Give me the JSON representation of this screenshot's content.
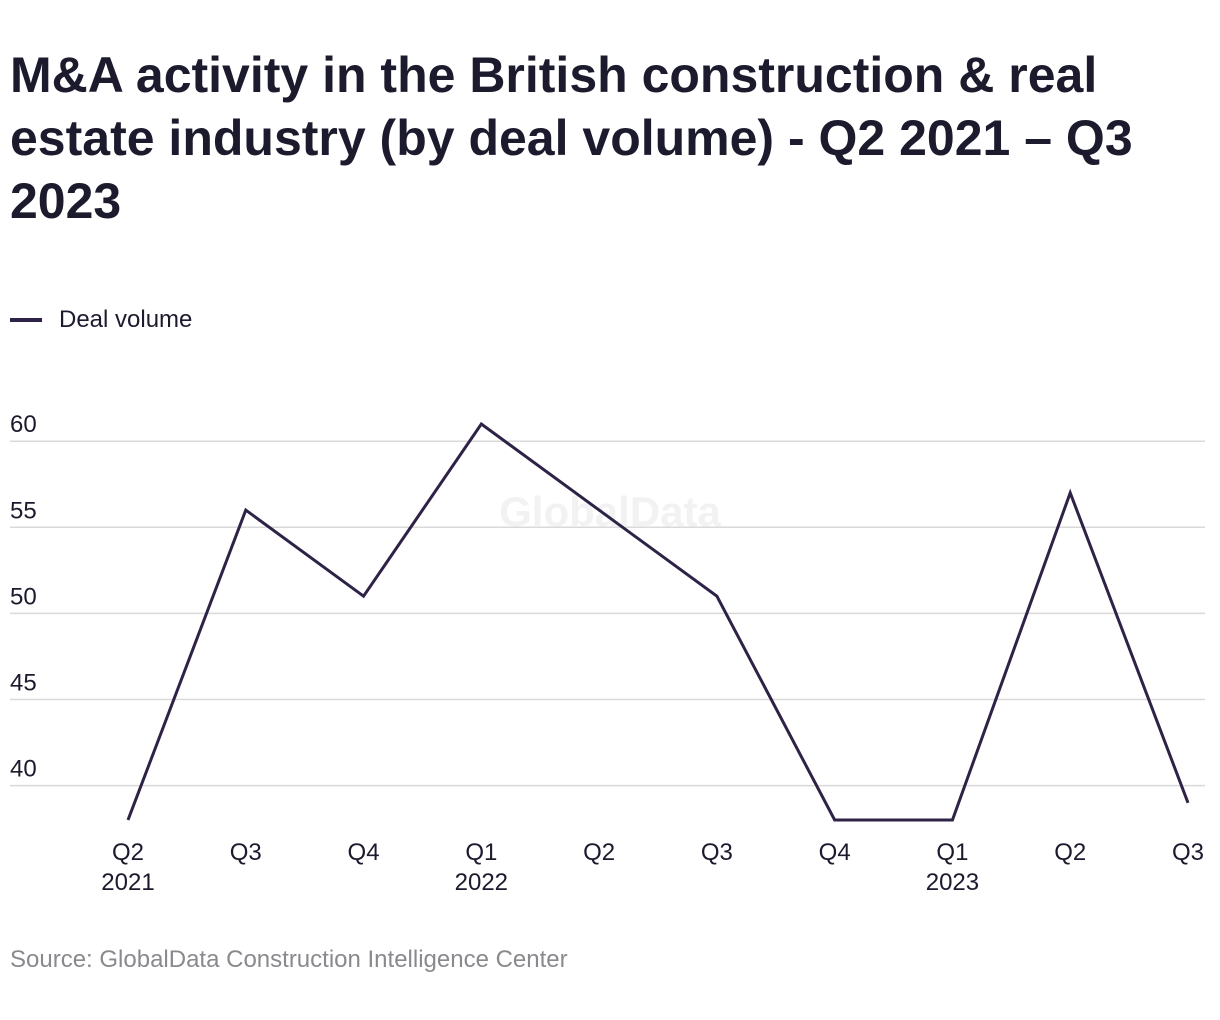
{
  "chart_data": {
    "type": "line",
    "title": "M&A activity in the British construction & real estate industry (by deal volume) - Q2 2021 – Q3 2023",
    "categories": [
      "Q2",
      "Q3",
      "Q4",
      "Q1",
      "Q2",
      "Q3",
      "Q4",
      "Q1",
      "Q2",
      "Q3"
    ],
    "year_labels": [
      "2021",
      "",
      "",
      "2022",
      "",
      "",
      "",
      "2023",
      "",
      ""
    ],
    "series": [
      {
        "name": "Deal volume",
        "values": [
          38,
          56,
          51,
          61,
          56,
          51,
          38,
          38,
          57,
          39
        ]
      }
    ],
    "yticks": [
      40,
      45,
      50,
      55,
      60
    ],
    "ylim": [
      38,
      61
    ],
    "xlabel": "",
    "ylabel": "",
    "grid": true,
    "legend_position": "top-left",
    "watermark": "GlobalData",
    "line_color": "#2e2347",
    "grid_color": "#d9d9d9"
  },
  "source": "Source: GlobalData Construction Intelligence Center"
}
